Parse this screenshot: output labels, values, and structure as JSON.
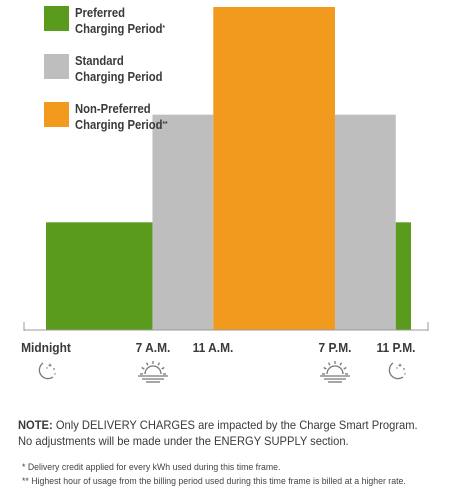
{
  "colors": {
    "preferred": "#5a9b1e",
    "standard": "#bebebe",
    "non_preferred": "#f29a1e",
    "axis": "#9a9a9a",
    "text": "#3a3a3a",
    "icon": "#777777"
  },
  "legend": [
    {
      "key": "preferred",
      "label_line1": "Preferred",
      "label_line2": "Charging Period",
      "mark": "*"
    },
    {
      "key": "standard",
      "label_line1": "Standard",
      "label_line2": "Charging Period",
      "mark": ""
    },
    {
      "key": "non_preferred",
      "label_line1": "Non-Preferred",
      "label_line2": "Charging Period",
      "mark": "**"
    }
  ],
  "chart_data": {
    "type": "bar",
    "x_unit": "hour of day",
    "x_range": [
      0,
      24
    ],
    "tick_labels": [
      {
        "hour": 0,
        "label": "Midnight",
        "icon": "moon-stars-icon"
      },
      {
        "hour": 7,
        "label": "7 A.M.",
        "icon": "sunrise-icon"
      },
      {
        "hour": 11,
        "label": "11 A.M.",
        "icon": ""
      },
      {
        "hour": 19,
        "label": "7 P.M.",
        "icon": "sunset-icon"
      },
      {
        "hour": 23,
        "label": "11 P.M.",
        "icon": "moon-stars-icon"
      }
    ],
    "segments": [
      {
        "start": 0,
        "end": 7,
        "period": "preferred",
        "level": 1
      },
      {
        "start": 7,
        "end": 11,
        "period": "standard",
        "level": 2
      },
      {
        "start": 11,
        "end": 19,
        "period": "non_preferred",
        "level": 3
      },
      {
        "start": 19,
        "end": 23,
        "period": "standard",
        "level": 2
      },
      {
        "start": 23,
        "end": 24,
        "period": "preferred",
        "level": 1
      }
    ],
    "ylim": [
      0,
      3
    ],
    "grid": false
  },
  "note": {
    "prefix": "NOTE:",
    "t1": " Only ",
    "b1": "DELIVERY CHARGES",
    "t2": " are impacted by the Charge Smart Program. No adjustments will be made under the ",
    "b2": "ENERGY SUPPLY",
    "t3": " section."
  },
  "footnotes": {
    "single": "* Delivery credit applied for every kWh used during this time frame.",
    "double": "** Highest hour of usage from the billing period used during this time frame is billed at a higher rate."
  }
}
